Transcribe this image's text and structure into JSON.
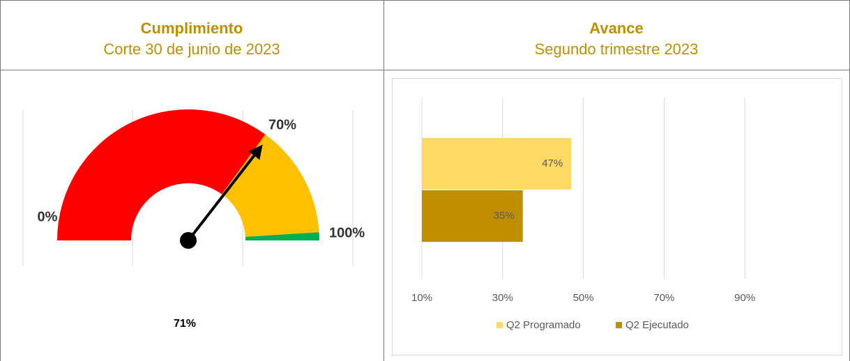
{
  "table": {
    "header": [
      {
        "title": "Cumplimiento",
        "subtitle": "Corte 30 de junio de 2023"
      },
      {
        "title": "Avance",
        "subtitle": "Segundo trimestre 2023"
      }
    ]
  },
  "chart_data": [
    {
      "type": "gauge",
      "value": 71,
      "value_label": "71%",
      "scale": [
        0,
        100
      ],
      "ticks": [
        {
          "value": 0,
          "label": "0%"
        },
        {
          "value": 70,
          "label": "70%"
        },
        {
          "value": 100,
          "label": "100%"
        }
      ],
      "bands": [
        {
          "from": 0,
          "to": 70,
          "color": "#ff0000"
        },
        {
          "from": 70,
          "to": 98,
          "color": "#ffc000"
        },
        {
          "from": 98,
          "to": 100,
          "color": "#00b050"
        }
      ]
    },
    {
      "type": "bar",
      "orientation": "horizontal",
      "categories": [
        null
      ],
      "series": [
        {
          "name": "Q2 Programado",
          "color": "#ffd966",
          "values": [
            47
          ],
          "value_labels": [
            "47%"
          ]
        },
        {
          "name": "Q2 Ejecutado",
          "color": "#bf8f00",
          "values": [
            35
          ],
          "value_labels": [
            "35%"
          ]
        }
      ],
      "xlim": [
        10,
        110
      ],
      "xticks": [
        {
          "value": 10,
          "label": "10%"
        },
        {
          "value": 30,
          "label": "30%"
        },
        {
          "value": 50,
          "label": "50%"
        },
        {
          "value": 70,
          "label": "70%"
        },
        {
          "value": 90,
          "label": "90%"
        }
      ],
      "grid": true,
      "legend": "bottom"
    }
  ]
}
